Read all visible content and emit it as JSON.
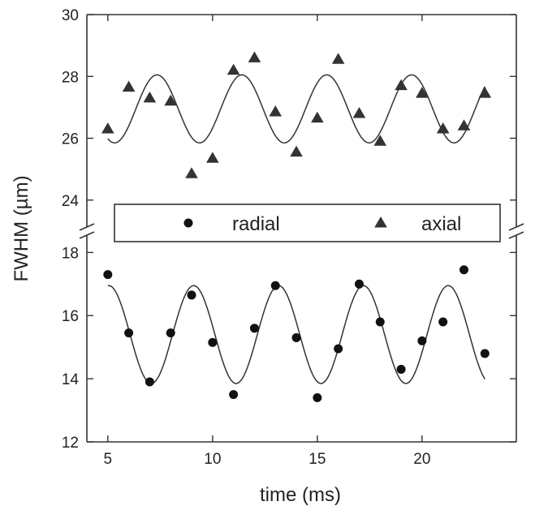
{
  "chart_data": {
    "type": "scatter",
    "xlabel": "time (ms)",
    "ylabel": "FWHM (µm)",
    "xlim": [
      4,
      24.5
    ],
    "xticks": [
      5,
      10,
      15,
      20
    ],
    "broken_y_axis": true,
    "upper_ylim": [
      23.6,
      30
    ],
    "upper_yticks": [
      24,
      26,
      28,
      30
    ],
    "lower_ylim": [
      12,
      18.6
    ],
    "lower_yticks": [
      12,
      14,
      16,
      18
    ],
    "legend": {
      "placement": "middle",
      "entries": [
        "radial",
        "axial"
      ]
    },
    "series": [
      {
        "name": "radial",
        "marker": "circle",
        "points": [
          [
            5,
            17.3
          ],
          [
            6,
            15.45
          ],
          [
            7,
            13.9
          ],
          [
            8,
            15.45
          ],
          [
            9,
            16.65
          ],
          [
            10,
            15.15
          ],
          [
            11,
            13.5
          ],
          [
            12,
            15.6
          ],
          [
            13,
            16.95
          ],
          [
            14,
            15.3
          ],
          [
            15,
            13.4
          ],
          [
            16,
            14.95
          ],
          [
            17,
            17.0
          ],
          [
            18,
            15.8
          ],
          [
            19,
            14.3
          ],
          [
            20,
            15.2
          ],
          [
            21,
            15.8
          ],
          [
            22,
            17.45
          ],
          [
            23,
            14.8
          ]
        ],
        "fit": {
          "mean": 15.4,
          "amplitude": 1.55,
          "period": 4.05,
          "phase_max": 9.1,
          "x_range": [
            5,
            23
          ]
        }
      },
      {
        "name": "axial",
        "marker": "triangle",
        "points": [
          [
            5,
            26.3
          ],
          [
            6,
            27.65
          ],
          [
            7,
            27.3
          ],
          [
            8,
            27.2
          ],
          [
            9,
            24.85
          ],
          [
            10,
            25.35
          ],
          [
            11,
            28.2
          ],
          [
            12,
            28.6
          ],
          [
            13,
            26.85
          ],
          [
            14,
            25.55
          ],
          [
            15,
            26.65
          ],
          [
            16,
            28.55
          ],
          [
            17,
            26.8
          ],
          [
            18,
            25.9
          ],
          [
            19,
            27.7
          ],
          [
            20,
            27.45
          ],
          [
            21,
            26.3
          ],
          [
            22,
            26.4
          ],
          [
            23,
            27.45
          ]
        ],
        "fit": {
          "mean": 26.95,
          "amplitude": 1.1,
          "period": 4.05,
          "phase_max": 7.35,
          "x_range": [
            5,
            23
          ]
        }
      }
    ]
  }
}
